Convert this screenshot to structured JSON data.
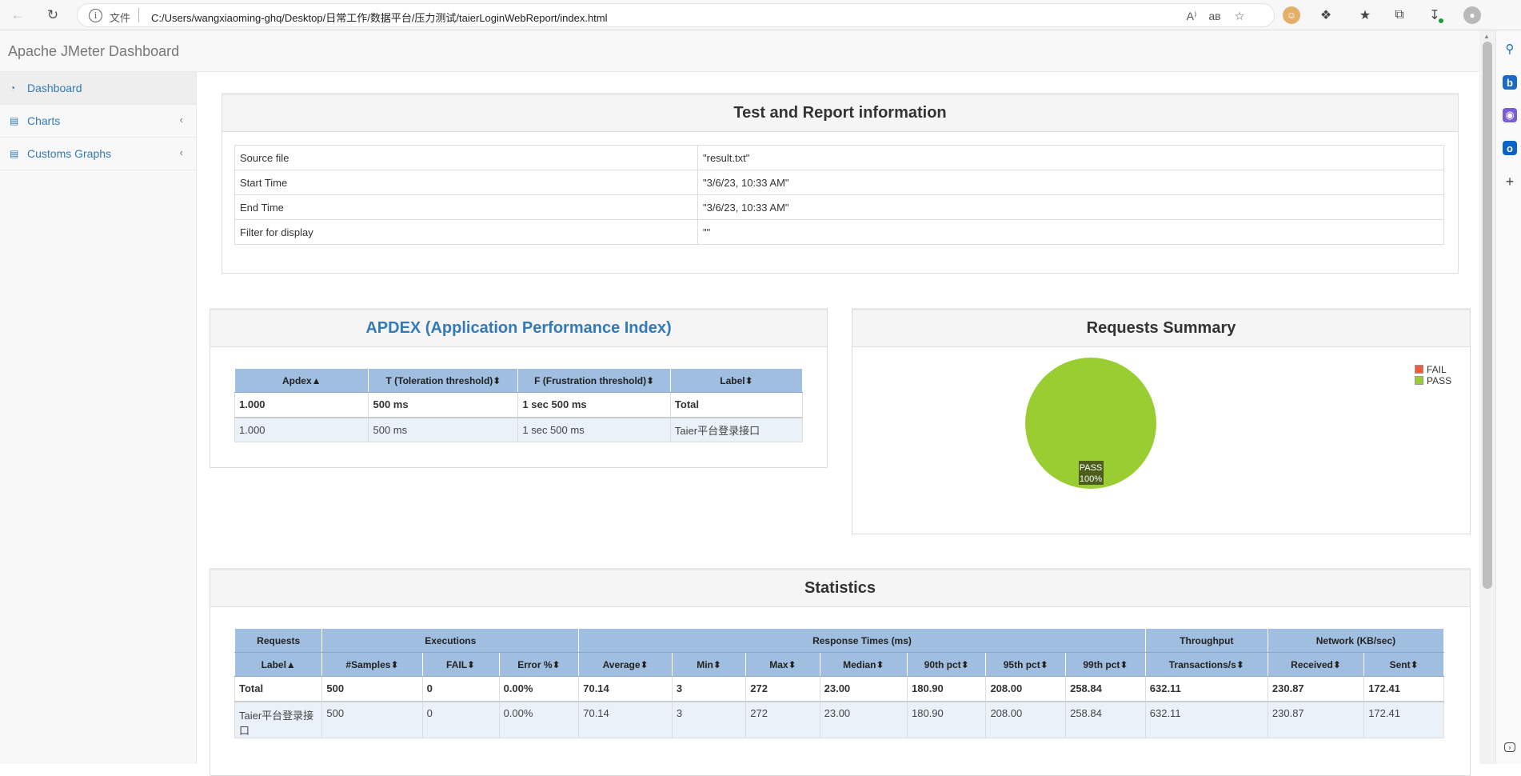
{
  "browser": {
    "scheme_label": "文件",
    "url": "C:/Users/wangxiaoming-ghq/Desktop/日常工作/数据平台/压力测试/taierLoginWebReport/index.html",
    "read_aloud_glyph": "A⁾",
    "translate_glyph": "aв",
    "info_glyph": "i"
  },
  "app": {
    "brand": "Apache JMeter Dashboard"
  },
  "sidebar": {
    "items": [
      {
        "label": "Dashboard",
        "icon": "dashboard-icon",
        "active": true
      },
      {
        "label": "Charts",
        "icon": "bar-chart-icon",
        "active": false
      },
      {
        "label": "Customs Graphs",
        "icon": "bar-chart-icon",
        "active": false
      }
    ]
  },
  "report_info": {
    "title": "Test and Report information",
    "rows": [
      {
        "key": "Source file",
        "value": "\"result.txt\""
      },
      {
        "key": "Start Time",
        "value": "\"3/6/23, 10:33 AM\""
      },
      {
        "key": "End Time",
        "value": "\"3/6/23, 10:33 AM\""
      },
      {
        "key": "Filter for display",
        "value": "\"\""
      }
    ]
  },
  "apdex": {
    "title": "APDEX (Application Performance Index)",
    "headers": [
      "Apdex",
      "T (Toleration threshold)",
      "F (Frustration threshold)",
      "Label"
    ],
    "total": [
      "1.000",
      "500 ms",
      "1 sec 500 ms",
      "Total"
    ],
    "rows": [
      [
        "1.000",
        "500 ms",
        "1 sec 500 ms",
        "Taier平台登录接口"
      ]
    ]
  },
  "requests_summary": {
    "title": "Requests Summary",
    "legend": [
      {
        "name": "FAIL",
        "color": "#f05a3c"
      },
      {
        "name": "PASS",
        "color": "#9acd32"
      }
    ],
    "slice_label_name": "PASS",
    "slice_label_value": "100%"
  },
  "chart_data": {
    "type": "pie",
    "title": "Requests Summary",
    "slices": [
      {
        "name": "FAIL",
        "value": 0,
        "color": "#f05a3c"
      },
      {
        "name": "PASS",
        "value": 100,
        "color": "#9acd32"
      }
    ],
    "legend_position": "top-right"
  },
  "statistics": {
    "title": "Statistics",
    "groups": [
      "Requests",
      "Executions",
      "Response Times (ms)",
      "Throughput",
      "Network (KB/sec)"
    ],
    "headers": [
      "Label",
      "#Samples",
      "FAIL",
      "Error %",
      "Average",
      "Min",
      "Max",
      "Median",
      "90th pct",
      "95th pct",
      "99th pct",
      "Transactions/s",
      "Received",
      "Sent"
    ],
    "total": [
      "Total",
      "500",
      "0",
      "0.00%",
      "70.14",
      "3",
      "272",
      "23.00",
      "180.90",
      "208.00",
      "258.84",
      "632.11",
      "230.87",
      "172.41"
    ],
    "rows": [
      [
        "Taier平台登录接口",
        "500",
        "0",
        "0.00%",
        "70.14",
        "3",
        "272",
        "23.00",
        "180.90",
        "208.00",
        "258.84",
        "632.11",
        "230.87",
        "172.41"
      ]
    ]
  }
}
